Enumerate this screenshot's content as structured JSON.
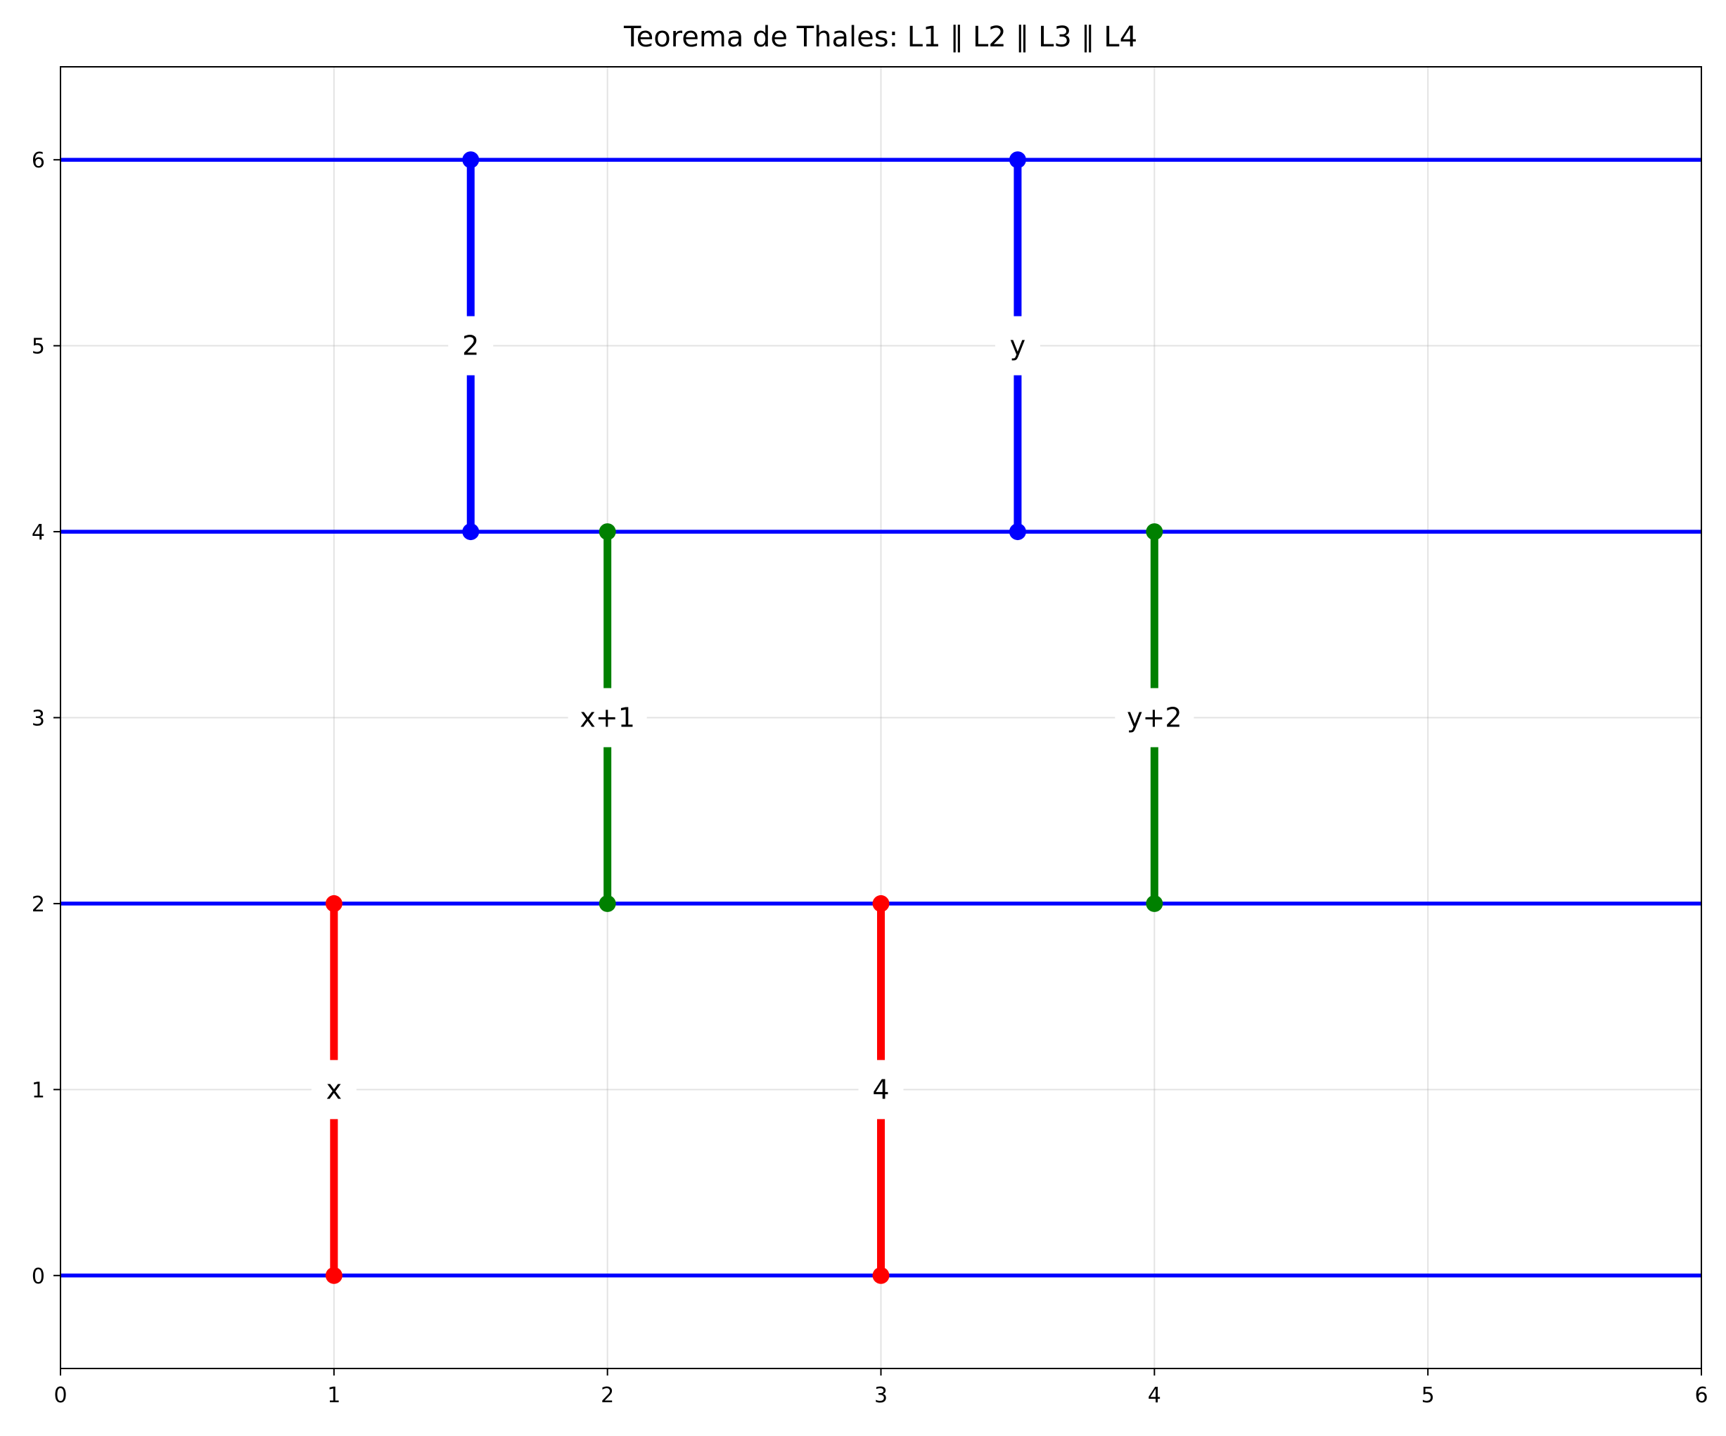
{
  "chart_data": {
    "type": "line",
    "title": "Teorema de Thales: L1 ∥ L2 ∥ L3 ∥ L4",
    "xlabel": "",
    "ylabel": "",
    "xlim": [
      0,
      6
    ],
    "ylim": [
      -0.5,
      6.5
    ],
    "xticks": [
      "0",
      "1",
      "2",
      "3",
      "4",
      "5",
      "6"
    ],
    "yticks": [
      "0",
      "1",
      "2",
      "3",
      "4",
      "5",
      "6"
    ],
    "grid": true,
    "parallel_lines": [
      {
        "y": 0,
        "color": "#0000ff"
      },
      {
        "y": 2,
        "color": "#0000ff"
      },
      {
        "y": 4,
        "color": "#0000ff"
      },
      {
        "y": 6,
        "color": "#0000ff"
      }
    ],
    "segments": [
      {
        "label": "x",
        "x": 1,
        "y_start": 0,
        "y_end": 2,
        "color": "#ff0000"
      },
      {
        "label": "4",
        "x": 3,
        "y_start": 0,
        "y_end": 2,
        "color": "#ff0000"
      },
      {
        "label": "x+1",
        "x": 2,
        "y_start": 2,
        "y_end": 4,
        "color": "#008000"
      },
      {
        "label": "y+2",
        "x": 4,
        "y_start": 2,
        "y_end": 4,
        "color": "#008000"
      },
      {
        "label": "2",
        "x": 1.5,
        "y_start": 4,
        "y_end": 6,
        "color": "#0000ff"
      },
      {
        "label": "y",
        "x": 3.5,
        "y_start": 4,
        "y_end": 6,
        "color": "#0000ff"
      }
    ]
  }
}
